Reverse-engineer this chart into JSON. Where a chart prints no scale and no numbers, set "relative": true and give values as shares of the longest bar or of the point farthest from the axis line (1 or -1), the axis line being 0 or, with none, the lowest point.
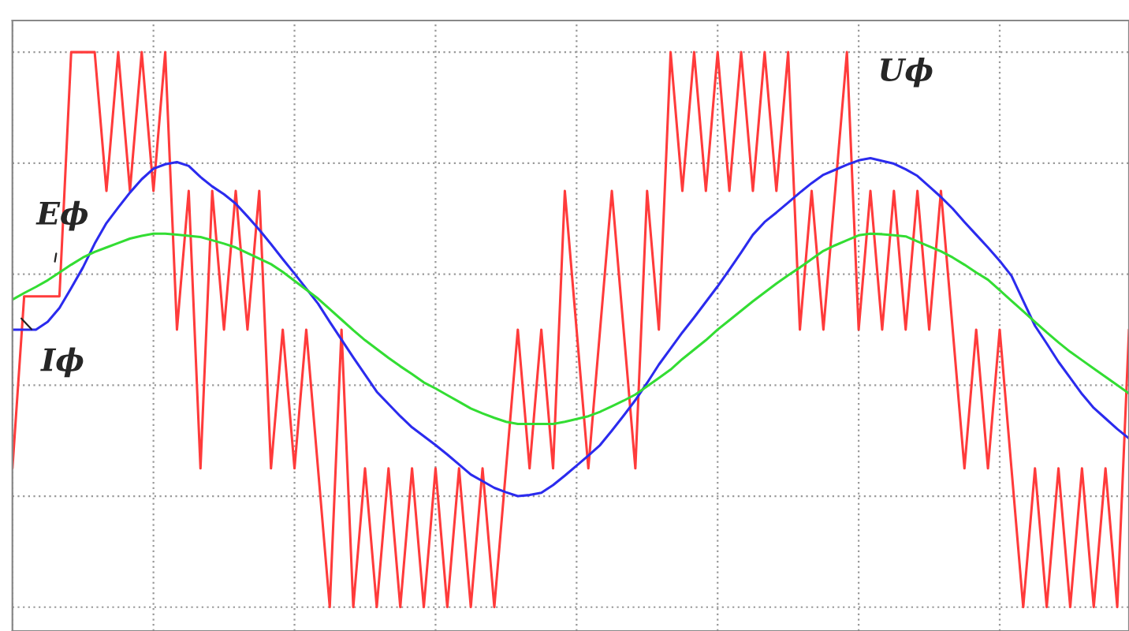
{
  "chart_data": {
    "type": "line",
    "relative": true,
    "grid": true,
    "categories": [
      null,
      null,
      null,
      null,
      null,
      null,
      null,
      null,
      null,
      null,
      null,
      null,
      null,
      null,
      null,
      null,
      null,
      null,
      null,
      null,
      null,
      null,
      null,
      null,
      null,
      null,
      null,
      null,
      null,
      null,
      null,
      null,
      null,
      null,
      null,
      null,
      null,
      null,
      null,
      null,
      null,
      null,
      null,
      null,
      null,
      null,
      null,
      null,
      null,
      null,
      null,
      null,
      null,
      null,
      null,
      null,
      null,
      null,
      null,
      null,
      null,
      null,
      null,
      null,
      null,
      null,
      null,
      null,
      null,
      null,
      null,
      null,
      null,
      null,
      null,
      null,
      null,
      null,
      null,
      null,
      null,
      null,
      null,
      null,
      null,
      null,
      null,
      null,
      null,
      null,
      null,
      null,
      null,
      null,
      null,
      null
    ],
    "annotations": [
      "Eϕ",
      "Iϕ",
      "Uϕ"
    ],
    "series": [
      {
        "color": "#ff3b3b",
        "values": [
          0.25,
          0.56,
          0.56,
          0.56,
          0.56,
          1,
          1,
          1,
          0.75,
          1,
          0.75,
          1,
          0.75,
          1,
          0.5,
          0.75,
          0.25,
          0.75,
          0.5,
          0.75,
          0.5,
          0.75,
          0.25,
          0.5,
          0.25,
          0.5,
          0.25,
          0,
          0.5,
          0,
          0.25,
          0,
          0.25,
          0,
          0.25,
          0,
          0.25,
          0,
          0.25,
          0,
          0.25,
          0,
          0.25,
          0.5,
          0.25,
          0.5,
          0.25,
          0.75,
          0.5,
          0.25,
          0.5,
          0.75,
          0.5,
          0.25,
          0.75,
          0.5,
          1,
          0.75,
          1,
          0.75,
          1,
          0.75,
          1,
          0.75,
          1,
          0.75,
          1,
          0.5,
          0.75,
          0.5,
          0.75,
          1,
          0.5,
          0.75,
          0.5,
          0.75,
          0.5,
          0.75,
          0.5,
          0.75,
          0.5,
          0.25,
          0.5,
          0.25,
          0.5,
          0.25,
          0,
          0.25,
          0,
          0.25,
          0,
          0.25,
          0,
          0.25,
          0,
          0.5
        ]
      },
      {
        "color": "#2b2bee",
        "values": [
          0.5,
          0.5,
          0.5,
          0.514,
          0.539,
          0.575,
          0.612,
          0.655,
          0.692,
          0.72,
          0.747,
          0.771,
          0.79,
          0.798,
          0.802,
          0.795,
          0.775,
          0.758,
          0.744,
          0.727,
          0.704,
          0.68,
          0.654,
          0.627,
          0.601,
          0.574,
          0.547,
          0.514,
          0.482,
          0.45,
          0.419,
          0.388,
          0.366,
          0.344,
          0.324,
          0.308,
          0.292,
          0.275,
          0.257,
          0.239,
          0.227,
          0.215,
          0.207,
          0.2,
          0.202,
          0.206,
          0.22,
          0.237,
          0.255,
          0.273,
          0.292,
          0.318,
          0.345,
          0.373,
          0.404,
          0.437,
          0.466,
          0.495,
          0.522,
          0.55,
          0.578,
          0.608,
          0.639,
          0.671,
          0.694,
          0.711,
          0.729,
          0.747,
          0.764,
          0.779,
          0.788,
          0.797,
          0.805,
          0.809,
          0.804,
          0.799,
          0.789,
          0.777,
          0.758,
          0.739,
          0.718,
          0.694,
          0.671,
          0.648,
          0.624,
          0.597,
          0.552,
          0.507,
          0.475,
          0.442,
          0.413,
          0.384,
          0.359,
          0.34,
          0.321,
          0.304
        ]
      },
      {
        "color": "#33dd33",
        "values": [
          0.554,
          0.566,
          0.577,
          0.589,
          0.603,
          0.617,
          0.63,
          0.64,
          0.648,
          0.656,
          0.664,
          0.669,
          0.673,
          0.673,
          0.671,
          0.669,
          0.667,
          0.661,
          0.655,
          0.648,
          0.638,
          0.628,
          0.618,
          0.604,
          0.588,
          0.572,
          0.556,
          0.537,
          0.518,
          0.499,
          0.481,
          0.465,
          0.449,
          0.434,
          0.42,
          0.405,
          0.394,
          0.382,
          0.37,
          0.358,
          0.349,
          0.341,
          0.334,
          0.33,
          0.33,
          0.33,
          0.33,
          0.334,
          0.339,
          0.344,
          0.352,
          0.362,
          0.372,
          0.383,
          0.398,
          0.413,
          0.428,
          0.447,
          0.464,
          0.481,
          0.5,
          0.517,
          0.534,
          0.551,
          0.567,
          0.583,
          0.598,
          0.612,
          0.627,
          0.642,
          0.652,
          0.661,
          0.67,
          0.673,
          0.672,
          0.67,
          0.668,
          0.659,
          0.65,
          0.641,
          0.63,
          0.617,
          0.603,
          0.59,
          0.571,
          0.552,
          0.533,
          0.514,
          0.495,
          0.477,
          0.46,
          0.445,
          0.43,
          0.415,
          0.4,
          0.385
        ]
      }
    ]
  }
}
